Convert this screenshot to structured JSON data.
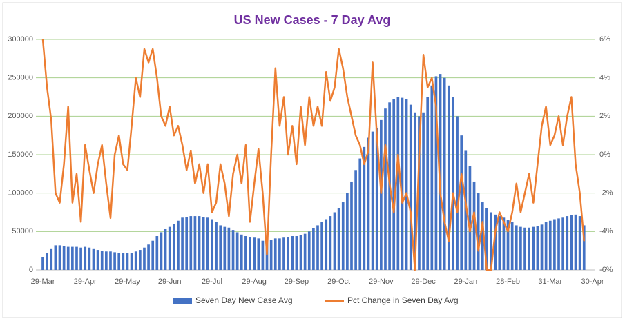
{
  "chart_data": {
    "type": "combo",
    "title": "US New Cases - 7 Day Avg",
    "categories": [
      "29-Mar",
      null,
      null,
      null,
      null,
      null,
      null,
      null,
      null,
      null,
      "29-Apr",
      null,
      null,
      null,
      null,
      null,
      null,
      null,
      null,
      null,
      "29-May",
      null,
      null,
      null,
      null,
      null,
      null,
      null,
      null,
      null,
      "29-Jun",
      null,
      null,
      null,
      null,
      null,
      null,
      null,
      null,
      null,
      "29-Jul",
      null,
      null,
      null,
      null,
      null,
      null,
      null,
      null,
      null,
      "29-Aug",
      null,
      null,
      null,
      null,
      null,
      null,
      null,
      null,
      null,
      "29-Sep",
      null,
      null,
      null,
      null,
      null,
      null,
      null,
      null,
      null,
      "29-Oct",
      null,
      null,
      null,
      null,
      null,
      null,
      null,
      null,
      null,
      "29-Nov",
      null,
      null,
      null,
      null,
      null,
      null,
      null,
      null,
      null,
      "29-Dec",
      null,
      null,
      null,
      null,
      null,
      null,
      null,
      null,
      null,
      "29-Jan",
      null,
      null,
      null,
      null,
      null,
      null,
      null,
      null,
      null,
      "28-Feb",
      null,
      null,
      null,
      null,
      null,
      null,
      null,
      null,
      null,
      "31-Mar",
      null,
      null,
      null,
      null,
      null,
      null,
      null,
      null,
      null,
      "30-Apr"
    ],
    "series": [
      {
        "name": "Seven Day New Case Avg",
        "type": "bar",
        "color": "#4472c4",
        "values": [
          17000,
          22000,
          28000,
          32000,
          32000,
          31000,
          30000,
          30000,
          30000,
          29000,
          30000,
          29000,
          28000,
          26000,
          25000,
          24000,
          24000,
          23000,
          22000,
          22000,
          22000,
          22000,
          24000,
          26000,
          29000,
          33000,
          38000,
          44000,
          49000,
          53000,
          56000,
          60000,
          64000,
          68000,
          69000,
          70000,
          70000,
          70000,
          69000,
          68000,
          66000,
          62000,
          58000,
          56000,
          55000,
          52000,
          49000,
          46000,
          44000,
          43000,
          42000,
          41000,
          38000,
          37000,
          39000,
          41000,
          41000,
          42000,
          43000,
          44000,
          44000,
          45000,
          47000,
          50000,
          54000,
          58000,
          62000,
          66000,
          70000,
          75000,
          80000,
          88000,
          100000,
          115000,
          130000,
          145000,
          160000,
          172000,
          180000,
          185000,
          195000,
          210000,
          218000,
          222000,
          225000,
          224000,
          222000,
          215000,
          205000,
          200000,
          205000,
          225000,
          240000,
          252000,
          255000,
          250000,
          240000,
          225000,
          200000,
          175000,
          155000,
          135000,
          115000,
          100000,
          88000,
          80000,
          75000,
          72000,
          70000,
          68000,
          65000,
          62000,
          58000,
          56000,
          55000,
          55000,
          56000,
          57000,
          59000,
          62000,
          64000,
          66000,
          67000,
          68000,
          70000,
          71000,
          72000,
          70000,
          58000,
          null,
          null
        ]
      },
      {
        "name": "Pct Change in Seven Day Avg",
        "type": "line",
        "axis": "y2",
        "color": "#ed7d31",
        "values": [
          6,
          3.5,
          1.8,
          -2,
          -2.5,
          -0.5,
          2.5,
          -2.5,
          -1,
          -3.5,
          0.5,
          -0.8,
          -2,
          -0.5,
          0.5,
          -1.5,
          -3.3,
          0,
          1,
          -0.5,
          -0.8,
          1.5,
          4,
          3,
          5.5,
          4.8,
          5.5,
          4,
          2,
          1.5,
          2.5,
          1,
          1.5,
          0.5,
          -0.8,
          0.2,
          -1.5,
          -0.5,
          -2,
          -0.5,
          -3,
          -2.5,
          -0.5,
          -1.5,
          -3.2,
          -1,
          0,
          -1.5,
          0.5,
          -3.5,
          -1.5,
          0.3,
          -2,
          -5.2,
          0,
          4.5,
          1.5,
          3,
          0,
          1.5,
          -0.5,
          2.5,
          0.5,
          3,
          1.5,
          2.5,
          1.5,
          4.3,
          2.8,
          3.5,
          5.5,
          4.5,
          3,
          2,
          1,
          0.5,
          -0.5,
          0.2,
          4.8,
          1,
          -2,
          0.5,
          -1.5,
          -3,
          0,
          -2.5,
          -2,
          -3,
          -6,
          0,
          5.2,
          3.5,
          4,
          2.5,
          -2,
          -3.5,
          -4.5,
          -2,
          -3,
          -1,
          -2.5,
          -4,
          -3,
          -5,
          -3.5,
          -6,
          -6,
          -4,
          -3,
          -3.5,
          -4,
          -3,
          -1.5,
          -3,
          -2,
          -1,
          -2.5,
          -0.5,
          1.5,
          2.5,
          0.5,
          1,
          2,
          0.5,
          2,
          3,
          -0.5,
          -2,
          -4.5,
          null,
          null
        ]
      }
    ],
    "ylim": [
      0,
      300000
    ],
    "yticks": [
      0,
      50000,
      100000,
      150000,
      200000,
      250000,
      300000
    ],
    "y2lim": [
      -6,
      6
    ],
    "y2ticks": [
      {
        "value": -6,
        "label": "-6%"
      },
      {
        "value": -4,
        "label": "-4%"
      },
      {
        "value": -2,
        "label": "-2%"
      },
      {
        "value": 0,
        "label": "0%"
      },
      {
        "value": 2,
        "label": "2%"
      },
      {
        "value": 4,
        "label": "4%"
      },
      {
        "value": 6,
        "label": "6%"
      }
    ],
    "grid": true,
    "grid_color": "#a9d08e",
    "legend": "bottom"
  }
}
